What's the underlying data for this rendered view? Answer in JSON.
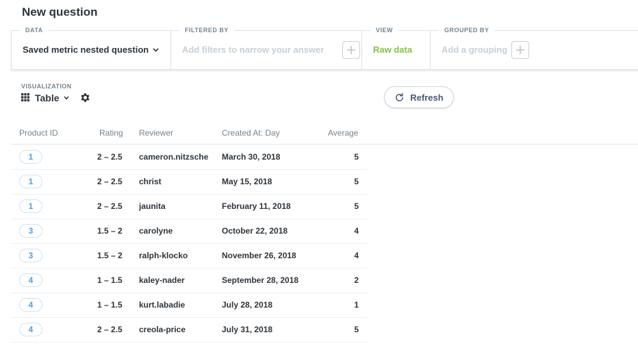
{
  "page": {
    "title": "New question"
  },
  "builder": {
    "data": {
      "label": "DATA",
      "value": "Saved metric nested question"
    },
    "filtered_by": {
      "label": "FILTERED BY",
      "placeholder": "Add filters to narrow your answer"
    },
    "view": {
      "label": "VIEW",
      "value": "Raw data"
    },
    "grouped_by": {
      "label": "GROUPED BY",
      "placeholder": "Add a grouping"
    }
  },
  "visualization": {
    "label": "VISUALIZATION",
    "selected": "Table",
    "icon": "table-grid-icon",
    "settings_icon": "gear-icon"
  },
  "refresh": {
    "label": "Refresh",
    "icon": "refresh-icon"
  },
  "colors": {
    "brand": "#509ee3",
    "raw_data": "#88bf4d",
    "text": "#2e353b",
    "muted": "#74838f",
    "placeholder": "#c7cfd4"
  },
  "table": {
    "columns": [
      "Product ID",
      "Rating",
      "Reviewer",
      "Created At: Day",
      "Average"
    ],
    "rows": [
      {
        "product_id": "1",
        "rating": "2 – 2.5",
        "reviewer": "cameron.nitzsche",
        "created_at": "March 30, 2018",
        "average": "5"
      },
      {
        "product_id": "1",
        "rating": "2 – 2.5",
        "reviewer": "christ",
        "created_at": "May 15, 2018",
        "average": "5"
      },
      {
        "product_id": "1",
        "rating": "2 – 2.5",
        "reviewer": "jaunita",
        "created_at": "February 11, 2018",
        "average": "5"
      },
      {
        "product_id": "3",
        "rating": "1.5 – 2",
        "reviewer": "carolyne",
        "created_at": "October 22, 2018",
        "average": "4"
      },
      {
        "product_id": "3",
        "rating": "1.5 – 2",
        "reviewer": "ralph-klocko",
        "created_at": "November 26, 2018",
        "average": "4"
      },
      {
        "product_id": "4",
        "rating": "1 – 1.5",
        "reviewer": "kaley-nader",
        "created_at": "September 28, 2018",
        "average": "2"
      },
      {
        "product_id": "4",
        "rating": "1 – 1.5",
        "reviewer": "kurt.labadie",
        "created_at": "July 28, 2018",
        "average": "1"
      },
      {
        "product_id": "4",
        "rating": "2 – 2.5",
        "reviewer": "creola-price",
        "created_at": "July 31, 2018",
        "average": "5"
      }
    ]
  }
}
